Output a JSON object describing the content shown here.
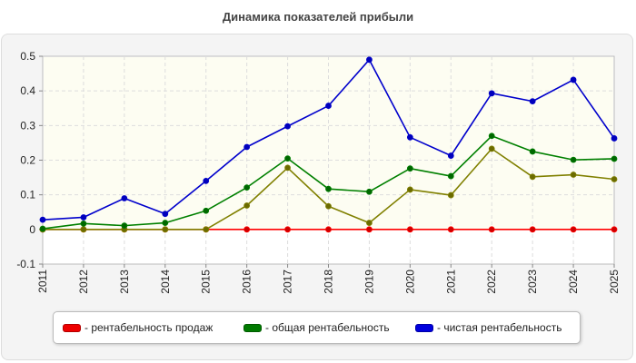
{
  "chart_data": {
    "type": "line",
    "title": "Динамика показателей прибыли",
    "xlabel": "",
    "ylabel": "",
    "ylim": [
      -0.1,
      0.5
    ],
    "yticks": [
      "-0.1",
      "0",
      "0.1",
      "0.2",
      "0.3",
      "0.4",
      "0.5"
    ],
    "categories": [
      "2011",
      "2012",
      "2013",
      "2014",
      "2015",
      "2016",
      "2017",
      "2018",
      "2019",
      "2020",
      "2021",
      "2022",
      "2023",
      "2024",
      "2025"
    ],
    "grid": true,
    "legend_position": "bottom",
    "series": [
      {
        "name": "- рентабельность продаж",
        "color": "#ff0000",
        "marker_color": "#cc0000",
        "values": [
          0,
          0,
          0,
          0,
          0,
          0,
          0,
          0,
          0,
          0,
          0,
          0,
          0,
          0,
          0
        ]
      },
      {
        "name": "- общая рентабельность",
        "color": "#008000",
        "marker_color": "#006600",
        "values": [
          0.002,
          0.017,
          0.011,
          0.019,
          0.054,
          0.121,
          0.205,
          0.117,
          0.109,
          0.176,
          0.154,
          0.27,
          0.225,
          0.201,
          0.204
        ]
      },
      {
        "name": "- чистая рентабельность",
        "color": "#0000cc",
        "marker_color": "#0000bb",
        "values": [
          0.028,
          0.035,
          0.09,
          0.045,
          0.14,
          0.238,
          0.298,
          0.357,
          0.49,
          0.266,
          0.213,
          0.393,
          0.37,
          0.432,
          0.263
        ]
      },
      {
        "name": "",
        "color": "#808000",
        "marker_color": "#6b6b00",
        "in_legend": false,
        "values": [
          0,
          0,
          0,
          0,
          0,
          0.069,
          0.178,
          0.067,
          0.019,
          0.115,
          0.099,
          0.233,
          0.152,
          0.158,
          0.145
        ]
      }
    ]
  }
}
